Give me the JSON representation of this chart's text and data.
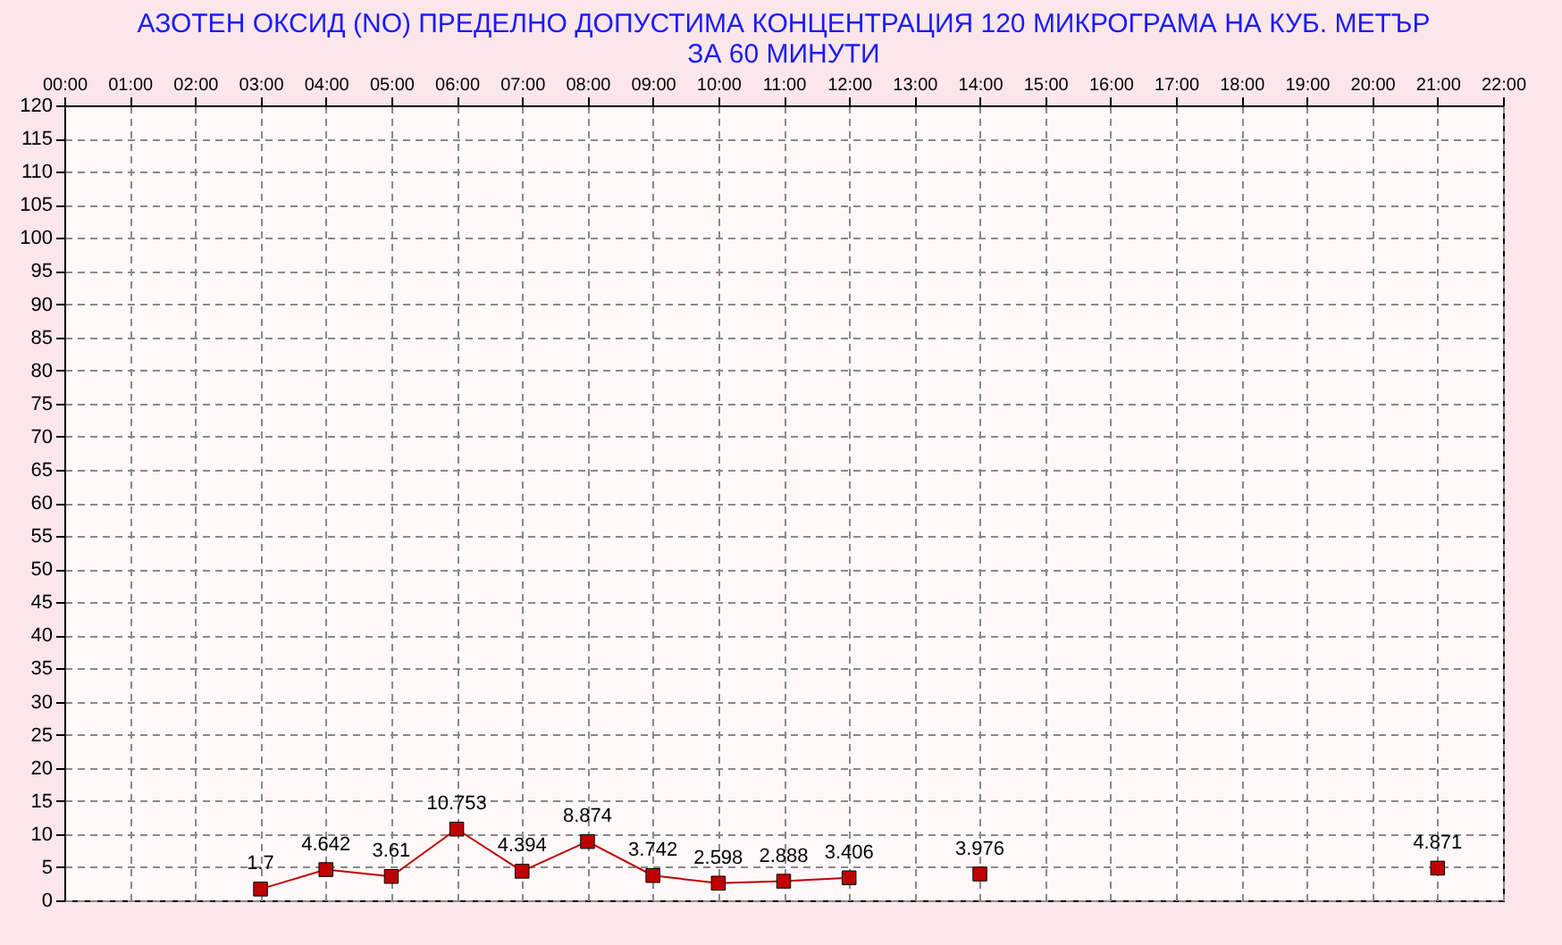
{
  "chart_data": {
    "type": "line",
    "title": "АЗОТЕН ОКСИД   (NO)     ПРЕДЕЛНО ДОПУСТИМА КОНЦЕНТРАЦИЯ 120 МИКРОГРАМА  НА КУБ. МЕТЪР\nЗА 60 МИНУТИ",
    "x": [
      3,
      4,
      5,
      6,
      7,
      8,
      9,
      10,
      11,
      12,
      13,
      14,
      15,
      16,
      17,
      18,
      19,
      20,
      21
    ],
    "series": [
      {
        "color": "#c00000",
        "values": [
          1.7,
          4.642,
          3.61,
          10.753,
          4.394,
          8.874,
          3.742,
          2.598,
          2.888,
          3.406,
          null,
          3.976,
          null,
          null,
          null,
          null,
          null,
          null,
          4.871
        ]
      }
    ],
    "xlim": [
      0,
      22
    ],
    "xticks": [
      {
        "value": 0,
        "label": "00:00"
      },
      {
        "value": 1,
        "label": "01:00"
      },
      {
        "value": 2,
        "label": "02:00"
      },
      {
        "value": 3,
        "label": "03:00"
      },
      {
        "value": 4,
        "label": "04:00"
      },
      {
        "value": 5,
        "label": "05:00"
      },
      {
        "value": 6,
        "label": "06:00"
      },
      {
        "value": 7,
        "label": "07:00"
      },
      {
        "value": 8,
        "label": "08:00"
      },
      {
        "value": 9,
        "label": "09:00"
      },
      {
        "value": 10,
        "label": "10:00"
      },
      {
        "value": 11,
        "label": "11:00"
      },
      {
        "value": 12,
        "label": "12:00"
      },
      {
        "value": 13,
        "label": "13:00"
      },
      {
        "value": 14,
        "label": "14:00"
      },
      {
        "value": 15,
        "label": "15:00"
      },
      {
        "value": 16,
        "label": "16:00"
      },
      {
        "value": 17,
        "label": "17:00"
      },
      {
        "value": 18,
        "label": "18:00"
      },
      {
        "value": 19,
        "label": "19:00"
      },
      {
        "value": 20,
        "label": "20:00"
      },
      {
        "value": 21,
        "label": "21:00"
      },
      {
        "value": 22,
        "label": "22:00"
      }
    ],
    "ylim": [
      0,
      120
    ],
    "yticks": [
      0,
      5,
      10,
      15,
      20,
      25,
      30,
      35,
      40,
      45,
      50,
      55,
      60,
      65,
      70,
      75,
      80,
      85,
      90,
      95,
      100,
      105,
      110,
      115,
      120
    ],
    "grid": true,
    "marker": "square",
    "line_style": "solid",
    "data_labels": true
  }
}
